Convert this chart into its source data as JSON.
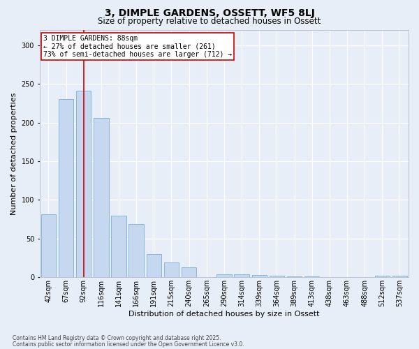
{
  "title": "3, DIMPLE GARDENS, OSSETT, WF5 8LJ",
  "subtitle": "Size of property relative to detached houses in Ossett",
  "xlabel": "Distribution of detached houses by size in Ossett",
  "ylabel": "Number of detached properties",
  "categories": [
    "42sqm",
    "67sqm",
    "92sqm",
    "116sqm",
    "141sqm",
    "166sqm",
    "191sqm",
    "215sqm",
    "240sqm",
    "265sqm",
    "290sqm",
    "314sqm",
    "339sqm",
    "364sqm",
    "389sqm",
    "413sqm",
    "438sqm",
    "463sqm",
    "488sqm",
    "512sqm",
    "537sqm"
  ],
  "values": [
    81,
    230,
    241,
    206,
    80,
    69,
    30,
    19,
    13,
    0,
    4,
    4,
    3,
    2,
    1,
    1,
    0,
    0,
    0,
    2,
    2
  ],
  "bar_color": "#c5d8f0",
  "bar_edge_color": "#7aafd4",
  "red_line_index": 2,
  "annotation_text": "3 DIMPLE GARDENS: 88sqm\n← 27% of detached houses are smaller (261)\n73% of semi-detached houses are larger (712) →",
  "annotation_box_color": "#ffffff",
  "annotation_box_edge": "#cc0000",
  "footnote1": "Contains HM Land Registry data © Crown copyright and database right 2025.",
  "footnote2": "Contains public sector information licensed under the Open Government Licence v3.0.",
  "ylim": [
    0,
    320
  ],
  "background_color": "#e8eef7",
  "grid_color": "#ffffff",
  "title_fontsize": 10,
  "subtitle_fontsize": 8.5,
  "tick_fontsize": 7,
  "xlabel_fontsize": 8,
  "ylabel_fontsize": 8,
  "annotation_fontsize": 7,
  "footnote_fontsize": 5.5
}
